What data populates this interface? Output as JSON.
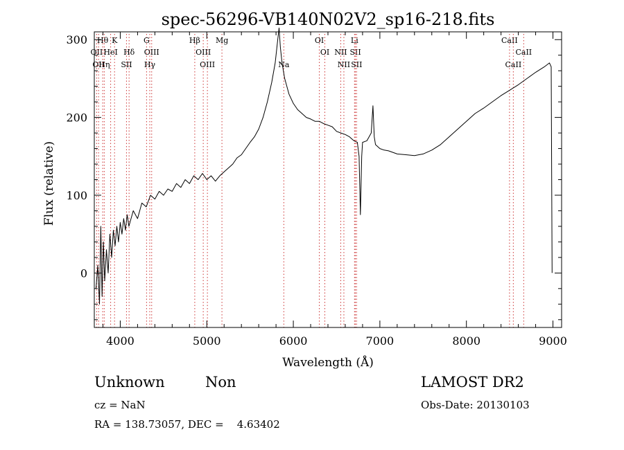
{
  "chart_data": {
    "type": "line",
    "title": "spec-56296-VB140N02V2_sp16-218.fits",
    "xlabel": "Wavelength (Å)",
    "ylabel": "Flux (relative)",
    "xlim": [
      3700,
      9100
    ],
    "ylim": [
      -70,
      310
    ],
    "xticks": [
      4000,
      5000,
      6000,
      7000,
      8000,
      9000
    ],
    "yticks": [
      0,
      100,
      200,
      300
    ],
    "grid": false,
    "line_color": "#000000",
    "marker_color": "#cc3333",
    "series": [
      {
        "points": [
          [
            3720,
            -20
          ],
          [
            3740,
            10
          ],
          [
            3760,
            -40
          ],
          [
            3775,
            60
          ],
          [
            3790,
            -30
          ],
          [
            3805,
            40
          ],
          [
            3820,
            -10
          ],
          [
            3840,
            30
          ],
          [
            3860,
            0
          ],
          [
            3880,
            50
          ],
          [
            3900,
            20
          ],
          [
            3920,
            55
          ],
          [
            3940,
            35
          ],
          [
            3960,
            60
          ],
          [
            3980,
            40
          ],
          [
            4000,
            65
          ],
          [
            4020,
            50
          ],
          [
            4040,
            70
          ],
          [
            4060,
            55
          ],
          [
            4080,
            75
          ],
          [
            4100,
            60
          ],
          [
            4150,
            80
          ],
          [
            4200,
            70
          ],
          [
            4250,
            90
          ],
          [
            4300,
            85
          ],
          [
            4350,
            100
          ],
          [
            4400,
            95
          ],
          [
            4450,
            105
          ],
          [
            4500,
            100
          ],
          [
            4550,
            108
          ],
          [
            4600,
            105
          ],
          [
            4650,
            115
          ],
          [
            4700,
            110
          ],
          [
            4750,
            120
          ],
          [
            4800,
            115
          ],
          [
            4850,
            125
          ],
          [
            4900,
            120
          ],
          [
            4950,
            128
          ],
          [
            5000,
            120
          ],
          [
            5050,
            125
          ],
          [
            5100,
            118
          ],
          [
            5150,
            125
          ],
          [
            5200,
            130
          ],
          [
            5250,
            135
          ],
          [
            5300,
            140
          ],
          [
            5350,
            148
          ],
          [
            5400,
            152
          ],
          [
            5450,
            160
          ],
          [
            5500,
            168
          ],
          [
            5550,
            175
          ],
          [
            5600,
            185
          ],
          [
            5650,
            200
          ],
          [
            5700,
            220
          ],
          [
            5750,
            245
          ],
          [
            5790,
            270
          ],
          [
            5820,
            300
          ],
          [
            5835,
            315
          ],
          [
            5850,
            290
          ],
          [
            5870,
            270
          ],
          [
            5900,
            250
          ],
          [
            5950,
            230
          ],
          [
            6000,
            218
          ],
          [
            6050,
            210
          ],
          [
            6100,
            205
          ],
          [
            6150,
            200
          ],
          [
            6200,
            198
          ],
          [
            6250,
            195
          ],
          [
            6300,
            195
          ],
          [
            6350,
            192
          ],
          [
            6400,
            190
          ],
          [
            6450,
            188
          ],
          [
            6500,
            182
          ],
          [
            6550,
            180
          ],
          [
            6600,
            178
          ],
          [
            6650,
            175
          ],
          [
            6700,
            170
          ],
          [
            6740,
            168
          ],
          [
            6760,
            150
          ],
          [
            6775,
            75
          ],
          [
            6790,
            150
          ],
          [
            6800,
            168
          ],
          [
            6850,
            170
          ],
          [
            6900,
            180
          ],
          [
            6920,
            215
          ],
          [
            6935,
            175
          ],
          [
            6950,
            165
          ],
          [
            7000,
            160
          ],
          [
            7050,
            158
          ],
          [
            7100,
            157
          ],
          [
            7200,
            153
          ],
          [
            7300,
            152
          ],
          [
            7400,
            151
          ],
          [
            7500,
            153
          ],
          [
            7600,
            158
          ],
          [
            7700,
            165
          ],
          [
            7800,
            175
          ],
          [
            7900,
            185
          ],
          [
            8000,
            195
          ],
          [
            8100,
            205
          ],
          [
            8200,
            212
          ],
          [
            8300,
            220
          ],
          [
            8400,
            228
          ],
          [
            8500,
            235
          ],
          [
            8600,
            242
          ],
          [
            8700,
            250
          ],
          [
            8800,
            258
          ],
          [
            8900,
            265
          ],
          [
            8960,
            270
          ],
          [
            8980,
            265
          ],
          [
            8990,
            0
          ]
        ]
      }
    ],
    "markers": [
      {
        "wavelength": 3727,
        "label": "OII",
        "row": 2
      },
      {
        "wavelength": 3750,
        "label": "OII",
        "row": 3
      },
      {
        "wavelength": 3797,
        "label": "Hθ",
        "row": 1
      },
      {
        "wavelength": 3815,
        "label": "Hη",
        "row": 3
      },
      {
        "wavelength": 3889,
        "label": "HeI",
        "row": 2
      },
      {
        "wavelength": 3934,
        "label": "K",
        "row": 1
      },
      {
        "wavelength": 4102,
        "label": "Hδ",
        "row": 2
      },
      {
        "wavelength": 4072,
        "label": "SII",
        "row": 3
      },
      {
        "wavelength": 4304,
        "label": "G",
        "row": 1
      },
      {
        "wavelength": 4363,
        "label": "OIII",
        "row": 2
      },
      {
        "wavelength": 4341,
        "label": "Hγ",
        "row": 3
      },
      {
        "wavelength": 4861,
        "label": "Hβ",
        "row": 1
      },
      {
        "wavelength": 4959,
        "label": "OIII",
        "row": 2
      },
      {
        "wavelength": 5007,
        "label": "OIII",
        "row": 3
      },
      {
        "wavelength": 5175,
        "label": "Mg",
        "row": 1
      },
      {
        "wavelength": 5890,
        "label": "Na",
        "row": 3
      },
      {
        "wavelength": 6300,
        "label": "OI",
        "row": 1
      },
      {
        "wavelength": 6364,
        "label": "OI",
        "row": 2
      },
      {
        "wavelength": 6548,
        "label": "NII",
        "row": 2
      },
      {
        "wavelength": 6584,
        "label": "NII",
        "row": 3
      },
      {
        "wavelength": 6707,
        "label": "Li",
        "row": 1
      },
      {
        "wavelength": 6717,
        "label": "SII",
        "row": 2
      },
      {
        "wavelength": 6731,
        "label": "SII",
        "row": 3
      },
      {
        "wavelength": 8498,
        "label": "CaII",
        "row": 1
      },
      {
        "wavelength": 8542,
        "label": "CaII",
        "row": 3
      },
      {
        "wavelength": 8662,
        "label": "CaII",
        "row": 2
      }
    ]
  },
  "info": {
    "class_label": "Unknown",
    "subclass_label": "Non",
    "survey": "LAMOST DR2",
    "cz": "cz = NaN",
    "obs_date": "Obs-Date: 20130103",
    "coords": "RA = 138.73057, DEC =    4.63402"
  }
}
